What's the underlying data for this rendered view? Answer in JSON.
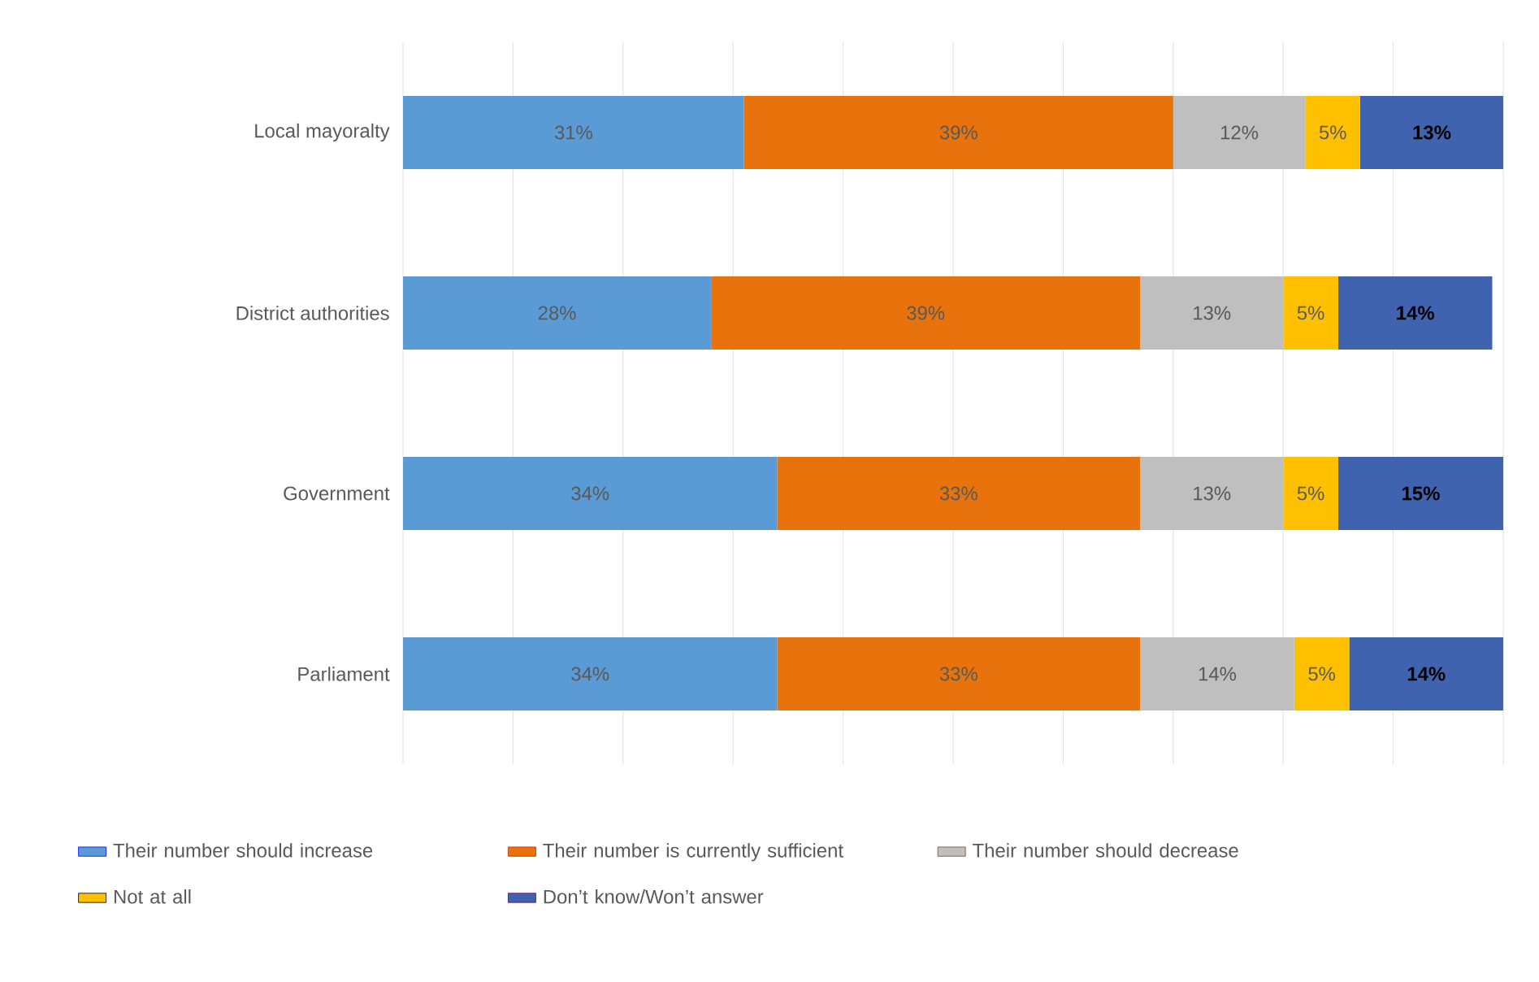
{
  "chart_data": {
    "type": "bar",
    "orientation": "horizontal",
    "stacked": true,
    "categories": [
      "Local mayoralty",
      "District authorities",
      "Government",
      "Parliament"
    ],
    "xlim": [
      0,
      100
    ],
    "xticks": [
      {
        "value": 0,
        "label": null
      },
      {
        "value": 10,
        "label": null
      },
      {
        "value": 20,
        "label": null
      },
      {
        "value": 30,
        "label": null
      },
      {
        "value": 40,
        "label": null
      },
      {
        "value": 50,
        "label": null
      },
      {
        "value": 60,
        "label": null
      },
      {
        "value": 70,
        "label": null
      },
      {
        "value": 80,
        "label": null
      },
      {
        "value": 90,
        "label": null
      },
      {
        "value": 100,
        "label": null
      }
    ],
    "tick_labels": "y",
    "grid": "x",
    "legend": "bottom",
    "series": [
      {
        "name": "Their number should increase",
        "color": "#5b9bd5",
        "values": [
          31,
          28,
          34,
          34
        ],
        "value_labels": [
          "31%",
          "28%",
          "34%",
          "34%"
        ]
      },
      {
        "name": "Their number is currently sufficient",
        "color": "#e8730c",
        "values": [
          39,
          39,
          33,
          33
        ],
        "value_labels": [
          "39%",
          "39%",
          "33%",
          "33%"
        ]
      },
      {
        "name": "Their number should decrease",
        "color": "#bfbfbf",
        "values": [
          12,
          13,
          13,
          14
        ],
        "value_labels": [
          "12%",
          "13%",
          "13%",
          "14%"
        ]
      },
      {
        "name": "Not at all",
        "color": "#ffc000",
        "values": [
          5,
          5,
          5,
          5
        ],
        "value_labels": [
          "5%",
          "5%",
          "5%",
          "5%"
        ]
      },
      {
        "name": "Don’t know/Won’t answer",
        "color": "#3f63ae",
        "values": [
          13,
          14,
          15,
          14
        ],
        "value_labels": [
          "13%",
          "14%",
          "15%",
          "14%"
        ]
      }
    ]
  }
}
